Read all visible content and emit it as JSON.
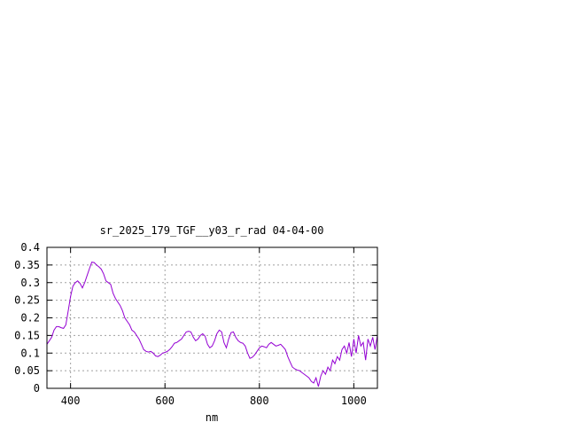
{
  "chart_data": {
    "type": "line",
    "title": "sr_2025_179_TGF__y03_r_rad 04-04-00",
    "xlabel": "nm",
    "ylabel": "",
    "xlim": [
      350,
      1050
    ],
    "ylim": [
      0,
      0.4
    ],
    "x_ticks": [
      400,
      600,
      800,
      1000
    ],
    "x_tick_labels": [
      "400",
      "600",
      "800",
      "1000"
    ],
    "y_ticks": [
      0,
      0.05,
      0.1,
      0.15,
      0.2,
      0.25,
      0.3,
      0.35,
      0.4
    ],
    "y_tick_labels": [
      "0",
      "0.05",
      "0.1",
      "0.15",
      "0.2",
      "0.25",
      "0.3",
      "0.35",
      "0.4"
    ],
    "grid": true,
    "line_color": "#9400d3",
    "series": [
      {
        "x": [
          350,
          355,
          360,
          365,
          370,
          375,
          380,
          385,
          390,
          395,
          400,
          405,
          410,
          415,
          420,
          425,
          430,
          435,
          440,
          445,
          450,
          455,
          460,
          465,
          470,
          475,
          480,
          485,
          490,
          495,
          500,
          505,
          510,
          515,
          520,
          525,
          530,
          535,
          540,
          545,
          550,
          555,
          560,
          565,
          570,
          575,
          580,
          585,
          590,
          595,
          600,
          605,
          610,
          615,
          620,
          625,
          630,
          635,
          640,
          645,
          650,
          655,
          660,
          665,
          670,
          675,
          680,
          685,
          690,
          695,
          700,
          705,
          710,
          715,
          720,
          725,
          730,
          735,
          740,
          745,
          750,
          755,
          760,
          765,
          770,
          775,
          780,
          785,
          790,
          795,
          800,
          805,
          810,
          815,
          820,
          825,
          830,
          835,
          840,
          845,
          850,
          855,
          860,
          865,
          870,
          875,
          880,
          885,
          890,
          895,
          900,
          905,
          910,
          915,
          920,
          925,
          930,
          935,
          940,
          945,
          950,
          955,
          960,
          965,
          970,
          975,
          980,
          985,
          990,
          995,
          1000,
          1005,
          1010,
          1015,
          1020,
          1025,
          1030,
          1035,
          1040,
          1045,
          1050
        ],
        "y": [
          0.125,
          0.135,
          0.145,
          0.165,
          0.175,
          0.175,
          0.172,
          0.17,
          0.18,
          0.22,
          0.26,
          0.29,
          0.3,
          0.305,
          0.298,
          0.285,
          0.3,
          0.32,
          0.34,
          0.358,
          0.357,
          0.35,
          0.345,
          0.338,
          0.325,
          0.305,
          0.3,
          0.295,
          0.27,
          0.255,
          0.245,
          0.235,
          0.22,
          0.2,
          0.19,
          0.18,
          0.165,
          0.16,
          0.15,
          0.14,
          0.125,
          0.11,
          0.105,
          0.103,
          0.105,
          0.1,
          0.092,
          0.09,
          0.094,
          0.1,
          0.102,
          0.105,
          0.11,
          0.118,
          0.128,
          0.13,
          0.135,
          0.14,
          0.15,
          0.16,
          0.162,
          0.16,
          0.145,
          0.135,
          0.14,
          0.15,
          0.155,
          0.148,
          0.125,
          0.115,
          0.12,
          0.135,
          0.155,
          0.165,
          0.16,
          0.13,
          0.115,
          0.14,
          0.158,
          0.16,
          0.145,
          0.135,
          0.13,
          0.128,
          0.12,
          0.1,
          0.085,
          0.088,
          0.095,
          0.105,
          0.115,
          0.12,
          0.118,
          0.115,
          0.125,
          0.13,
          0.125,
          0.12,
          0.122,
          0.125,
          0.118,
          0.11,
          0.09,
          0.075,
          0.06,
          0.055,
          0.052,
          0.05,
          0.045,
          0.04,
          0.035,
          0.03,
          0.02,
          0.015,
          0.03,
          0.005,
          0.035,
          0.05,
          0.04,
          0.06,
          0.05,
          0.08,
          0.07,
          0.09,
          0.08,
          0.11,
          0.12,
          0.1,
          0.13,
          0.09,
          0.14,
          0.1,
          0.15,
          0.12,
          0.13,
          0.08,
          0.14,
          0.12,
          0.145,
          0.11,
          0.15
        ]
      }
    ]
  }
}
